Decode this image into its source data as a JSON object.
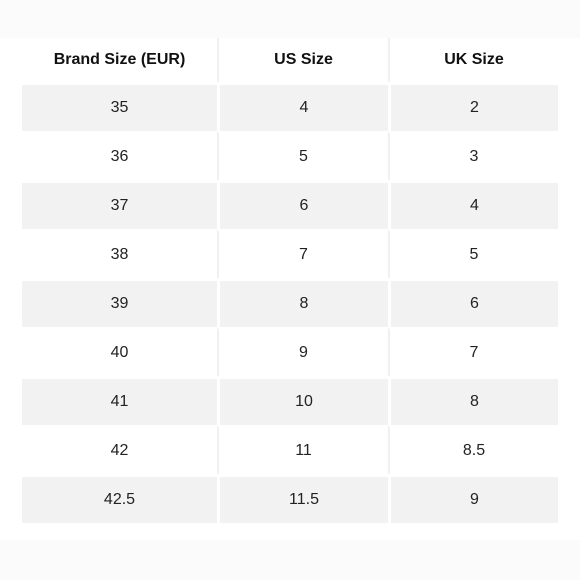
{
  "table": {
    "headers": [
      "Brand Size (EUR)",
      "US Size",
      "UK Size"
    ],
    "rows": [
      [
        "35",
        "4",
        "2"
      ],
      [
        "36",
        "5",
        "3"
      ],
      [
        "37",
        "6",
        "4"
      ],
      [
        "38",
        "7",
        "5"
      ],
      [
        "39",
        "8",
        "6"
      ],
      [
        "40",
        "9",
        "7"
      ],
      [
        "41",
        "10",
        "8"
      ],
      [
        "42",
        "11",
        "8.5"
      ],
      [
        "42.5",
        "11.5",
        "9"
      ]
    ]
  },
  "colors": {
    "row_shade": "#f2f2f2",
    "background": "#ffffff",
    "text": "#222222"
  }
}
